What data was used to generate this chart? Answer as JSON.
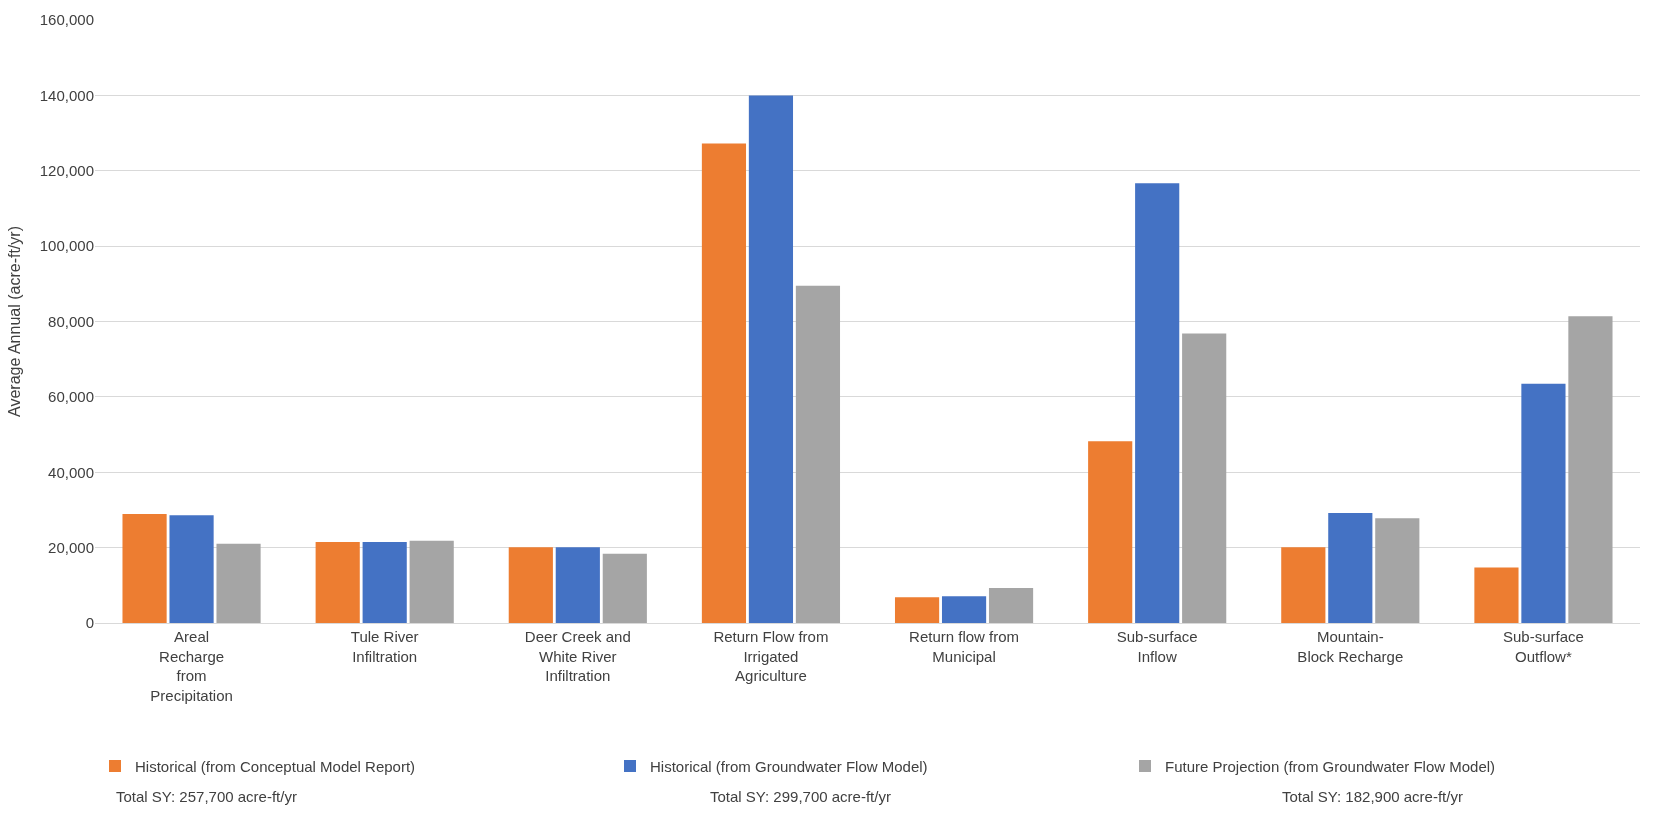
{
  "chart_data": {
    "type": "bar",
    "ylabel": "Average Annual (acre-ft/yr)",
    "categories": [
      "Areal\nRecharge\nfrom\nPrecipitation",
      "Tule River\nInfiltration",
      "Deer Creek and\nWhite River\nInfiltration",
      "Return Flow from\nIrrigated\nAgriculture",
      "Return flow from\nMunicipal",
      "Sub-surface\nInflow",
      "Mountain-\nBlock Recharge",
      "Sub-surface\nOutflow*"
    ],
    "series": [
      {
        "name": "Historical (from Conceptual Model Report)",
        "color": "#ed7d31",
        "values": [
          28900,
          21500,
          20100,
          127200,
          6800,
          48200,
          20100,
          14700
        ]
      },
      {
        "name": "Historical (from Groundwater Flow Model)",
        "color": "#4472c4",
        "values": [
          28600,
          21500,
          20100,
          140000,
          7100,
          116700,
          29200,
          63500
        ]
      },
      {
        "name": "Future Projection (from Groundwater Flow Model)",
        "color": "#a5a5a5",
        "values": [
          21000,
          21800,
          18400,
          89500,
          9300,
          76800,
          27800,
          81400
        ]
      }
    ],
    "ylim": [
      0,
      160000
    ],
    "yticks": [
      {
        "value": 0,
        "label": "0"
      },
      {
        "value": 20000,
        "label": "20,000"
      },
      {
        "value": 40000,
        "label": "40,000"
      },
      {
        "value": 60000,
        "label": "60,000"
      },
      {
        "value": 80000,
        "label": "80,000"
      },
      {
        "value": 100000,
        "label": "100,000"
      },
      {
        "value": 120000,
        "label": "120,000"
      },
      {
        "value": 140000,
        "label": "140,000"
      },
      {
        "value": 160000,
        "label": "160,000"
      }
    ],
    "grid": "y",
    "legend": "bottom",
    "annotations": [
      "Total SY: 257,700 acre-ft/yr",
      "Total SY: 299,700 acre-ft/yr",
      "Total SY: 182,900 acre-ft/yr"
    ]
  }
}
